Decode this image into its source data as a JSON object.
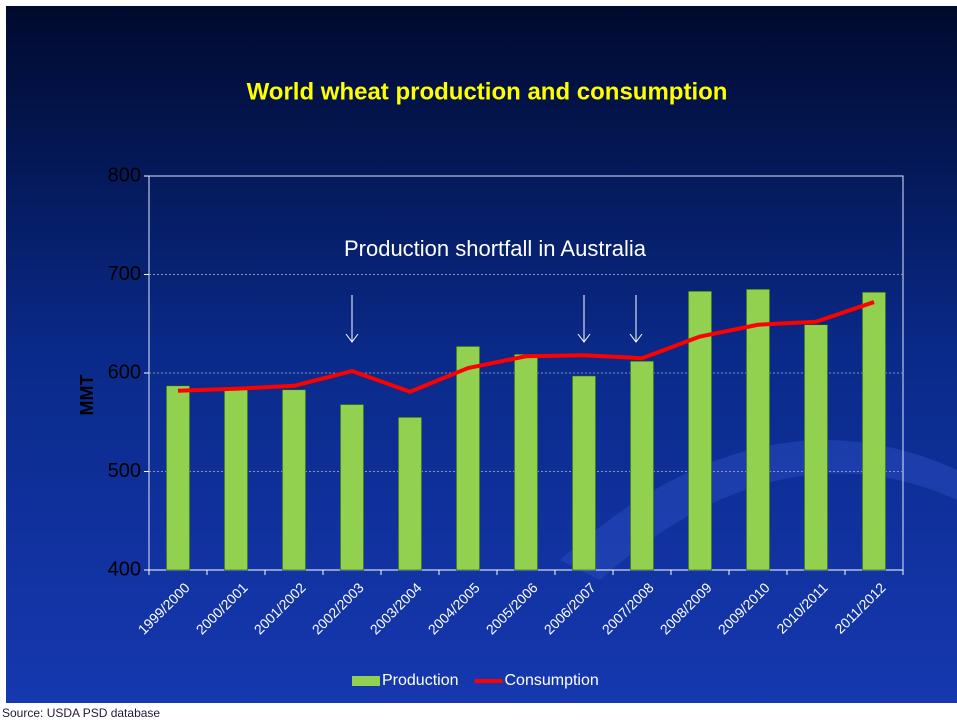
{
  "chart_data": {
    "type": "bar",
    "title": "World wheat production and consumption",
    "annotation": "Production shortfall in Australia",
    "source": "Source:  USDA PSD database",
    "y_label": "MMT",
    "categories": [
      "1999/2000",
      "2000/2001",
      "2001/2002",
      "2002/2003",
      "2003/2004",
      "2004/2005",
      "2005/2006",
      "2006/2007",
      "2007/2008",
      "2008/2009",
      "2009/2010",
      "2010/2011",
      "2011/2012"
    ],
    "series": [
      {
        "name": "Production",
        "type": "bar",
        "color": "#92d050",
        "values": [
          587,
          583,
          583,
          568,
          555,
          627,
          619,
          597,
          612,
          683,
          685,
          649,
          682
        ]
      },
      {
        "name": "Consumption",
        "type": "line",
        "color": "#ff0000",
        "values": [
          582,
          584,
          587,
          602,
          581,
          605,
          617,
          618,
          615,
          637,
          649,
          652,
          672
        ]
      }
    ],
    "ylim": [
      400,
      800
    ],
    "yticks": [
      400,
      500,
      600,
      700,
      800
    ],
    "grid": true,
    "legend": "bottom"
  }
}
